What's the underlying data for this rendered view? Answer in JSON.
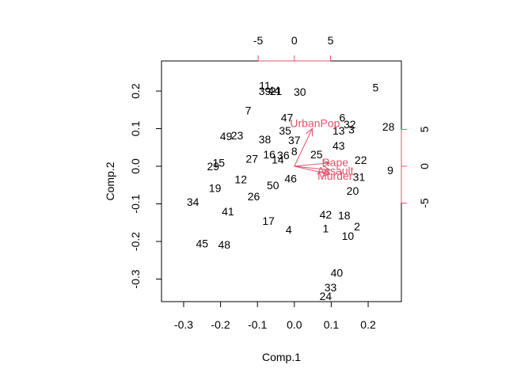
{
  "chart_data": {
    "type": "scatter",
    "xlabel": "Comp.1",
    "ylabel": "Comp.2",
    "xlim": [
      -0.36,
      0.29
    ],
    "ylim": [
      -0.36,
      0.28
    ],
    "x_ticks": [
      -0.3,
      -0.2,
      -0.1,
      0.0,
      0.1,
      0.2
    ],
    "y_ticks": [
      -0.3,
      -0.2,
      -0.1,
      0.0,
      0.1,
      0.2
    ],
    "x_tick_labels": [
      "-0.3",
      "-0.2",
      "-0.1",
      "0.0",
      "0.1",
      "0.2"
    ],
    "y_tick_labels": [
      "-0.3",
      "-0.2",
      "-0.1",
      "0.0",
      "0.1",
      "0.2"
    ],
    "top_ticks": [
      -5,
      0,
      5
    ],
    "right_ticks": [
      -5,
      0,
      5
    ],
    "top_tick_labels": [
      "-5",
      "0",
      "5"
    ],
    "right_tick_labels": [
      "-5",
      "0",
      "5"
    ],
    "secondary_scale": 0.0196,
    "observations": [
      {
        "label": "1",
        "x": 0.085,
        "y": -0.165
      },
      {
        "label": "2",
        "x": 0.17,
        "y": -0.16
      },
      {
        "label": "3",
        "x": 0.155,
        "y": 0.098
      },
      {
        "label": "4",
        "x": -0.015,
        "y": -0.168
      },
      {
        "label": "5",
        "x": 0.22,
        "y": 0.21
      },
      {
        "label": "6",
        "x": 0.13,
        "y": 0.13
      },
      {
        "label": "7",
        "x": -0.125,
        "y": 0.148
      },
      {
        "label": "8",
        "x": 0.0,
        "y": 0.04
      },
      {
        "label": "9",
        "x": 0.26,
        "y": -0.01
      },
      {
        "label": "10",
        "x": 0.145,
        "y": -0.185
      },
      {
        "label": "11",
        "x": -0.08,
        "y": 0.215
      },
      {
        "label": "12",
        "x": -0.145,
        "y": -0.035
      },
      {
        "label": "13",
        "x": 0.12,
        "y": 0.095
      },
      {
        "label": "14",
        "x": -0.045,
        "y": 0.018
      },
      {
        "label": "15",
        "x": -0.205,
        "y": 0.01
      },
      {
        "label": "16",
        "x": -0.068,
        "y": 0.032
      },
      {
        "label": "17",
        "x": -0.07,
        "y": -0.145
      },
      {
        "label": "18",
        "x": 0.135,
        "y": -0.13
      },
      {
        "label": "19",
        "x": -0.215,
        "y": -0.058
      },
      {
        "label": "20",
        "x": 0.158,
        "y": -0.065
      },
      {
        "label": "21",
        "x": -0.05,
        "y": 0.2
      },
      {
        "label": "22",
        "x": 0.18,
        "y": 0.017
      },
      {
        "label": "23",
        "x": -0.155,
        "y": 0.082
      },
      {
        "label": "24",
        "x": 0.085,
        "y": -0.345
      },
      {
        "label": "25",
        "x": 0.06,
        "y": 0.032
      },
      {
        "label": "26",
        "x": -0.11,
        "y": -0.08
      },
      {
        "label": "27",
        "x": -0.115,
        "y": 0.02
      },
      {
        "label": "28",
        "x": 0.255,
        "y": 0.105
      },
      {
        "label": "29",
        "x": -0.22,
        "y": 0.0
      },
      {
        "label": "30",
        "x": 0.015,
        "y": 0.198
      },
      {
        "label": "31",
        "x": 0.175,
        "y": -0.028
      },
      {
        "label": "32",
        "x": 0.15,
        "y": 0.112
      },
      {
        "label": "33",
        "x": 0.098,
        "y": -0.322
      },
      {
        "label": "34",
        "x": -0.275,
        "y": -0.095
      },
      {
        "label": "35",
        "x": -0.025,
        "y": 0.095
      },
      {
        "label": "36",
        "x": -0.03,
        "y": 0.03
      },
      {
        "label": "37",
        "x": 0.0,
        "y": 0.07
      },
      {
        "label": "38",
        "x": -0.08,
        "y": 0.072
      },
      {
        "label": "39",
        "x": -0.08,
        "y": 0.2
      },
      {
        "label": "40",
        "x": 0.115,
        "y": -0.283
      },
      {
        "label": "41",
        "x": -0.18,
        "y": -0.12
      },
      {
        "label": "42",
        "x": 0.085,
        "y": -0.128
      },
      {
        "label": "43",
        "x": 0.12,
        "y": 0.055
      },
      {
        "label": "44",
        "x": -0.055,
        "y": 0.202
      },
      {
        "label": "45",
        "x": -0.25,
        "y": -0.205
      },
      {
        "label": "46",
        "x": -0.01,
        "y": -0.033
      },
      {
        "label": "47",
        "x": -0.02,
        "y": 0.13
      },
      {
        "label": "48",
        "x": -0.19,
        "y": -0.208
      },
      {
        "label": "49",
        "x": -0.185,
        "y": 0.08
      },
      {
        "label": "50",
        "x": -0.058,
        "y": -0.05
      }
    ],
    "variables": [
      {
        "label": "UrbanPop",
        "x": 2.48,
        "y": 5.11
      },
      {
        "label": "Rape",
        "x": 4.9,
        "y": 0.45
      },
      {
        "label": "Assault",
        "x": 4.93,
        "y": -0.5
      },
      {
        "label": "Murder",
        "x": 4.9,
        "y": -1.1
      }
    ],
    "colors": {
      "observations": "#000000",
      "variables": "#df536b",
      "background": "#ffffff"
    }
  }
}
